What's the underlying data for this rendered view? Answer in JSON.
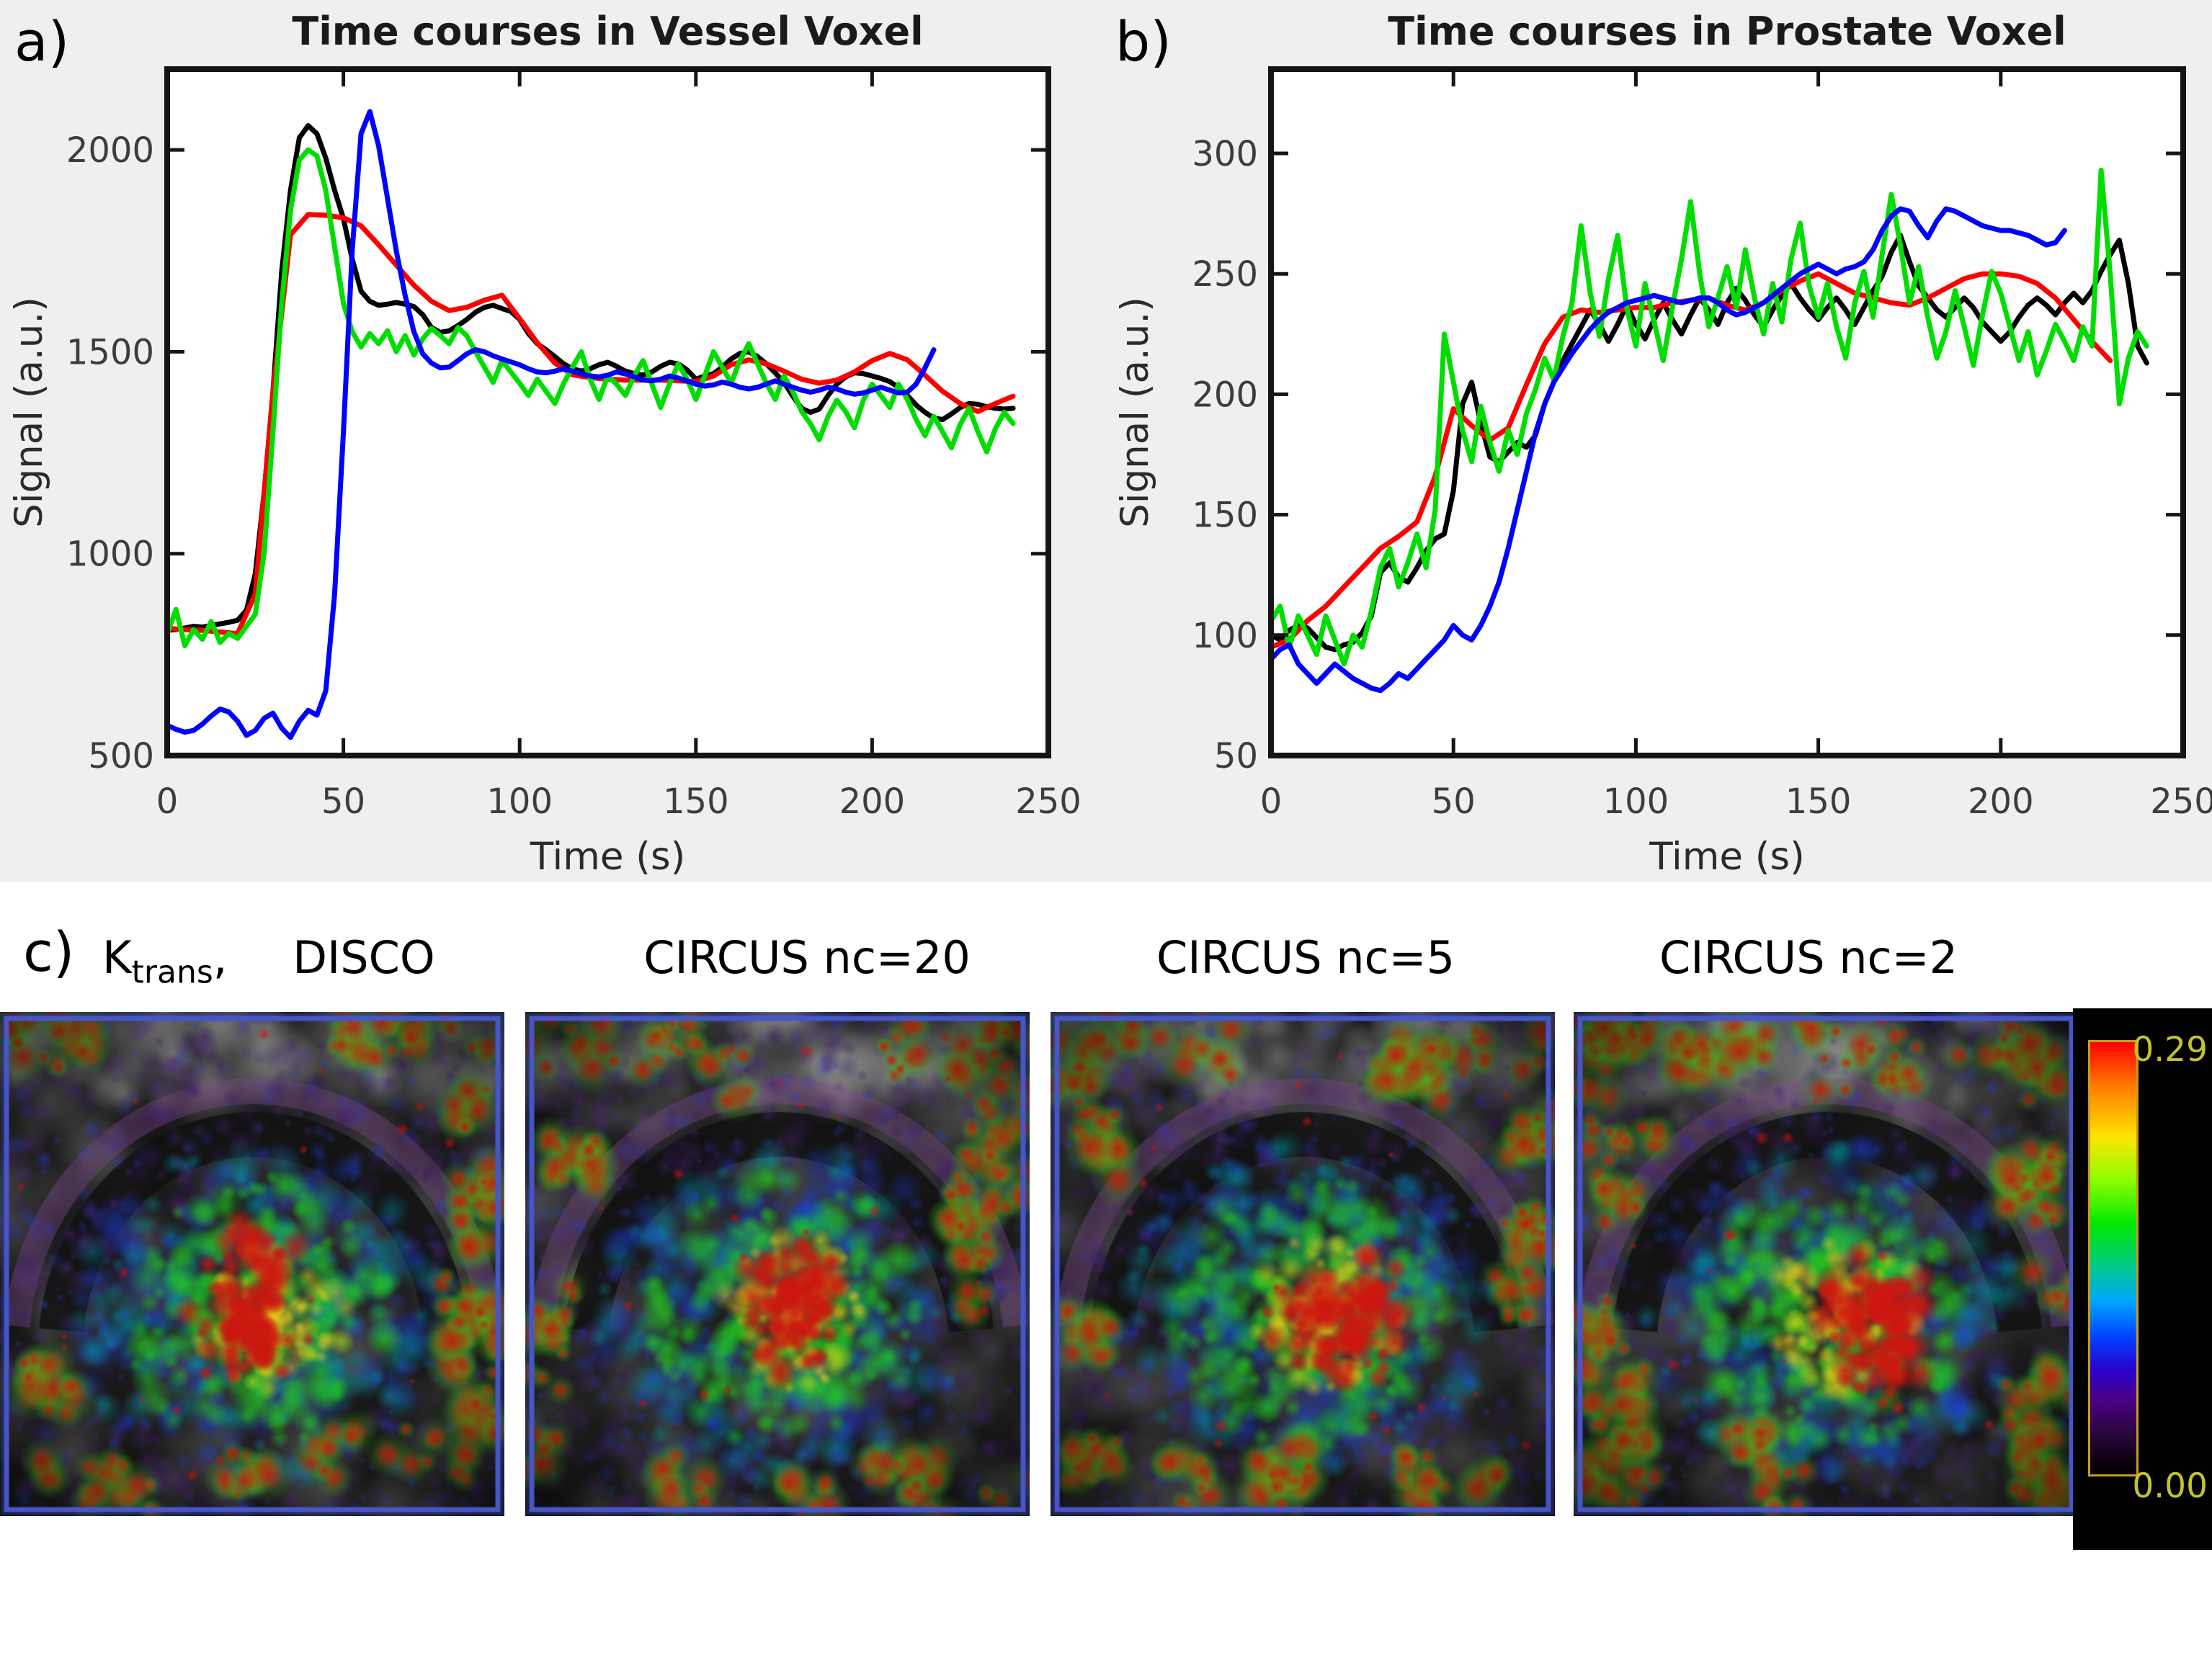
{
  "panels": {
    "a_label": "a)",
    "b_label": "b)",
    "c_label": "c)"
  },
  "style": {
    "figure_background": "#efefef",
    "plot_background": "#ffffff",
    "axes_color": "#151515",
    "tick_label_color": "#3d3d3d",
    "title_color": "#1a1a1a"
  },
  "chart_data": [
    {
      "id": "vessel",
      "type": "line",
      "title": "Time courses in Vessel Voxel",
      "xlabel": "Time (s)",
      "ylabel": "Signal (a.u.)",
      "xlim": [
        0,
        250
      ],
      "ylim": [
        500,
        2200
      ],
      "xticks": [
        0,
        50,
        100,
        150,
        200,
        250
      ],
      "yticks": [
        500,
        1000,
        1500,
        2000
      ],
      "grid": false,
      "legend": "none",
      "series": [
        {
          "name": "black",
          "color": "#000000",
          "width": 7,
          "x0": 0,
          "dx": 2.5,
          "y": [
            810,
            812,
            816,
            820,
            818,
            822,
            826,
            830,
            835,
            860,
            950,
            1150,
            1400,
            1700,
            1900,
            2030,
            2060,
            2040,
            1980,
            1900,
            1830,
            1730,
            1650,
            1625,
            1615,
            1618,
            1622,
            1618,
            1612,
            1592,
            1560,
            1548,
            1552,
            1565,
            1580,
            1598,
            1610,
            1615,
            1607,
            1600,
            1580,
            1545,
            1520,
            1505,
            1488,
            1470,
            1458,
            1452,
            1458,
            1468,
            1474,
            1464,
            1452,
            1446,
            1442,
            1450,
            1464,
            1474,
            1470,
            1455,
            1432,
            1440,
            1446,
            1462,
            1482,
            1496,
            1500,
            1488,
            1470,
            1448,
            1424,
            1390,
            1360,
            1350,
            1358,
            1392,
            1420,
            1438,
            1448,
            1446,
            1440,
            1434,
            1426,
            1412,
            1392,
            1368,
            1350,
            1336,
            1332,
            1346,
            1362,
            1372,
            1370,
            1364,
            1360,
            1358,
            1360
          ]
        },
        {
          "name": "red",
          "color": "#ff0000",
          "width": 7,
          "x0": 0,
          "dx": 5,
          "y": [
            815,
            812,
            810,
            806,
            802,
            900,
            1400,
            1790,
            1840,
            1838,
            1832,
            1812,
            1765,
            1715,
            1665,
            1625,
            1602,
            1610,
            1628,
            1640,
            1582,
            1522,
            1472,
            1443,
            1436,
            1432,
            1430,
            1430,
            1430,
            1428,
            1426,
            1440,
            1468,
            1480,
            1470,
            1452,
            1432,
            1422,
            1430,
            1450,
            1478,
            1496,
            1480,
            1442,
            1402,
            1372,
            1352,
            1372,
            1390
          ]
        },
        {
          "name": "green",
          "color": "#00dd00",
          "width": 7,
          "x0": 0,
          "dx": 2.5,
          "y": [
            800,
            862,
            772,
            812,
            788,
            832,
            780,
            802,
            790,
            820,
            850,
            1000,
            1300,
            1620,
            1850,
            1975,
            2000,
            1985,
            1900,
            1760,
            1620,
            1550,
            1512,
            1545,
            1520,
            1552,
            1500,
            1540,
            1492,
            1532,
            1558,
            1540,
            1520,
            1560,
            1540,
            1500,
            1462,
            1424,
            1478,
            1450,
            1422,
            1392,
            1432,
            1402,
            1372,
            1422,
            1462,
            1500,
            1432,
            1382,
            1440,
            1420,
            1392,
            1440,
            1478,
            1420,
            1362,
            1420,
            1470,
            1432,
            1382,
            1440,
            1500,
            1462,
            1422,
            1478,
            1520,
            1470,
            1422,
            1382,
            1440,
            1402,
            1352,
            1322,
            1282,
            1340,
            1380,
            1352,
            1312,
            1380,
            1420,
            1392,
            1362,
            1420,
            1382,
            1332,
            1292,
            1340,
            1302,
            1262,
            1320,
            1360,
            1302,
            1252,
            1310,
            1350,
            1322
          ]
        },
        {
          "name": "blue",
          "color": "#0000ff",
          "width": 7,
          "x0": 0,
          "dx": 2.5,
          "y": [
            575,
            565,
            558,
            562,
            578,
            598,
            615,
            608,
            585,
            550,
            562,
            592,
            605,
            568,
            545,
            585,
            612,
            600,
            660,
            900,
            1300,
            1750,
            2040,
            2095,
            2010,
            1880,
            1750,
            1640,
            1550,
            1495,
            1472,
            1460,
            1462,
            1478,
            1495,
            1505,
            1500,
            1490,
            1482,
            1475,
            1468,
            1458,
            1450,
            1448,
            1452,
            1458,
            1452,
            1445,
            1440,
            1438,
            1442,
            1450,
            1445,
            1438,
            1430,
            1428,
            1432,
            1440,
            1435,
            1428,
            1420,
            1415,
            1418,
            1425,
            1420,
            1412,
            1408,
            1412,
            1420,
            1428,
            1420,
            1412,
            1405,
            1400,
            1405,
            1412,
            1408,
            1400,
            1395,
            1398,
            1405,
            1412,
            1405,
            1398,
            1400,
            1420,
            1460,
            1505
          ]
        }
      ]
    },
    {
      "id": "prostate",
      "type": "line",
      "title": "Time courses in Prostate Voxel",
      "xlabel": "Time (s)",
      "ylabel": "Signal (a.u.)",
      "xlim": [
        0,
        250
      ],
      "ylim": [
        50,
        335
      ],
      "xticks": [
        0,
        50,
        100,
        150,
        200,
        250
      ],
      "yticks": [
        50,
        100,
        150,
        200,
        250,
        300
      ],
      "grid": false,
      "legend": "none",
      "series": [
        {
          "name": "black",
          "color": "#000000",
          "width": 7,
          "x0": 0,
          "dx": 2.5,
          "y": [
            100,
            98,
            102,
            104,
            103,
            99,
            95,
            94,
            96,
            97,
            101,
            108,
            126,
            130,
            124,
            122,
            128,
            135,
            140,
            142,
            160,
            196,
            205,
            188,
            174,
            172,
            176,
            180,
            178,
            183,
            196,
            205,
            214,
            221,
            228,
            235,
            229,
            222,
            229,
            237,
            229,
            223,
            231,
            238,
            231,
            225,
            233,
            240,
            235,
            229,
            238,
            244,
            239,
            233,
            228,
            235,
            241,
            246,
            240,
            235,
            231,
            236,
            240,
            235,
            229,
            236,
            243,
            249,
            259,
            266,
            255,
            245,
            240,
            235,
            232,
            236,
            240,
            236,
            230,
            226,
            222,
            226,
            232,
            237,
            240,
            237,
            233,
            238,
            242,
            238,
            243,
            251,
            258,
            264,
            246,
            220,
            213
          ]
        },
        {
          "name": "red",
          "color": "#ff0000",
          "width": 7,
          "x0": 0,
          "dx": 5,
          "y": [
            95,
            98,
            106,
            112,
            120,
            128,
            136,
            141,
            147,
            166,
            194,
            187,
            181,
            186,
            204,
            221,
            232,
            235,
            234,
            235,
            236,
            236,
            238,
            239,
            240,
            237,
            235,
            238,
            243,
            247,
            250,
            246,
            242,
            240,
            238,
            237,
            240,
            244,
            248,
            250,
            250,
            249,
            246,
            240,
            231,
            222,
            214
          ]
        },
        {
          "name": "green",
          "color": "#00dd00",
          "width": 7,
          "x0": 0,
          "dx": 2.5,
          "y": [
            106,
            112,
            95,
            108,
            100,
            92,
            108,
            98,
            88,
            100,
            95,
            110,
            128,
            136,
            120,
            130,
            142,
            128,
            152,
            225,
            205,
            185,
            172,
            195,
            180,
            168,
            185,
            175,
            192,
            202,
            215,
            206,
            224,
            238,
            270,
            242,
            224,
            248,
            266,
            236,
            220,
            246,
            230,
            214,
            236,
            256,
            280,
            250,
            228,
            240,
            253,
            236,
            260,
            240,
            225,
            246,
            230,
            256,
            271,
            245,
            232,
            246,
            228,
            215,
            238,
            251,
            232,
            258,
            283,
            262,
            238,
            253,
            232,
            215,
            226,
            243,
            228,
            212,
            233,
            251,
            242,
            228,
            214,
            226,
            208,
            218,
            229,
            222,
            214,
            228,
            220,
            293,
            250,
            196,
            215,
            226,
            220
          ]
        },
        {
          "name": "blue",
          "color": "#0000ff",
          "width": 7,
          "x0": 0,
          "dx": 2.5,
          "y": [
            90,
            94,
            96,
            88,
            84,
            80,
            84,
            88,
            85,
            82,
            80,
            78,
            77,
            80,
            84,
            82,
            86,
            90,
            94,
            98,
            104,
            100,
            98,
            104,
            112,
            122,
            136,
            152,
            168,
            184,
            196,
            205,
            211,
            217,
            222,
            227,
            231,
            234,
            236,
            238,
            239,
            240,
            241,
            240,
            239,
            238,
            239,
            240,
            240,
            238,
            235,
            233,
            234,
            236,
            238,
            241,
            244,
            247,
            250,
            252,
            254,
            252,
            250,
            252,
            253,
            255,
            260,
            268,
            274,
            277,
            276,
            270,
            265,
            272,
            277,
            276,
            274,
            272,
            270,
            269,
            268,
            268,
            267,
            266,
            264,
            262,
            263,
            268
          ]
        }
      ]
    }
  ],
  "section_c": {
    "label": "c)",
    "parameter_label": {
      "base": "K",
      "sub": "trans",
      "suffix": ","
    },
    "map_titles": [
      "DISCO",
      "CIRCUS nc=20",
      "CIRCUS nc=5",
      "CIRCUS nc=2"
    ],
    "map_frame_color": "#4656c8",
    "colorbar": {
      "max_label": "0.29",
      "min_label": "0.00",
      "text_color": "#c3c32e",
      "stops": [
        "#ff0000 0%",
        "#ff7a00 10%",
        "#ffe400 22%",
        "#8cff00 32%",
        "#00e800 42%",
        "#00c98c 52%",
        "#00a6ff 60%",
        "#0044ff 68%",
        "#2a00cc 76%",
        "#4b0082 83%",
        "#2d0642 90%",
        "#120216 96%",
        "#000000 100%"
      ]
    }
  }
}
